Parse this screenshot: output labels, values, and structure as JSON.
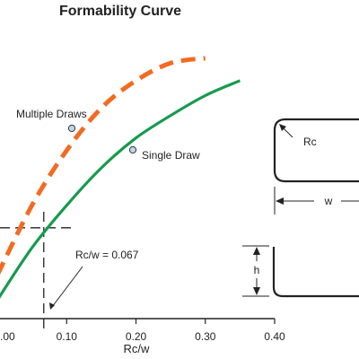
{
  "chart_data": {
    "type": "line",
    "title": "Formability Curve",
    "xlabel": "Rc/w",
    "ylabel": "",
    "xlim": [
      0,
      0.4
    ],
    "x_ticks": [
      {
        "value": 0.0,
        "label": ".00"
      },
      {
        "value": 0.1,
        "label": "0.10"
      },
      {
        "value": 0.2,
        "label": "0.20"
      },
      {
        "value": 0.3,
        "label": "0.30"
      },
      {
        "value": 0.4,
        "label": "0.40"
      }
    ],
    "ylim": [
      0,
      1
    ],
    "grid": false,
    "series": [
      {
        "name": "Multiple Draws",
        "style": "dashed",
        "color": "#f26b22",
        "x": [
          0.0,
          0.05,
          0.1,
          0.15,
          0.2,
          0.25,
          0.3
        ],
        "y": [
          0.12,
          0.4,
          0.62,
          0.79,
          0.9,
          0.97,
          0.99
        ]
      },
      {
        "name": "Single Draw",
        "style": "solid",
        "color": "#169b4d",
        "x": [
          0.0,
          0.05,
          0.1,
          0.15,
          0.2,
          0.25,
          0.3,
          0.35
        ],
        "y": [
          0.02,
          0.23,
          0.4,
          0.55,
          0.67,
          0.76,
          0.84,
          0.9
        ]
      }
    ],
    "annotations": [
      {
        "text": "Rc/w = 0.067",
        "x": 0.067
      }
    ],
    "reference_point": {
      "x": 0.067,
      "y": 0.31
    },
    "callout_color": "#bcd8ef"
  },
  "diagram": {
    "rc_label": "Rc",
    "w_label": "w",
    "h_label": "h"
  }
}
